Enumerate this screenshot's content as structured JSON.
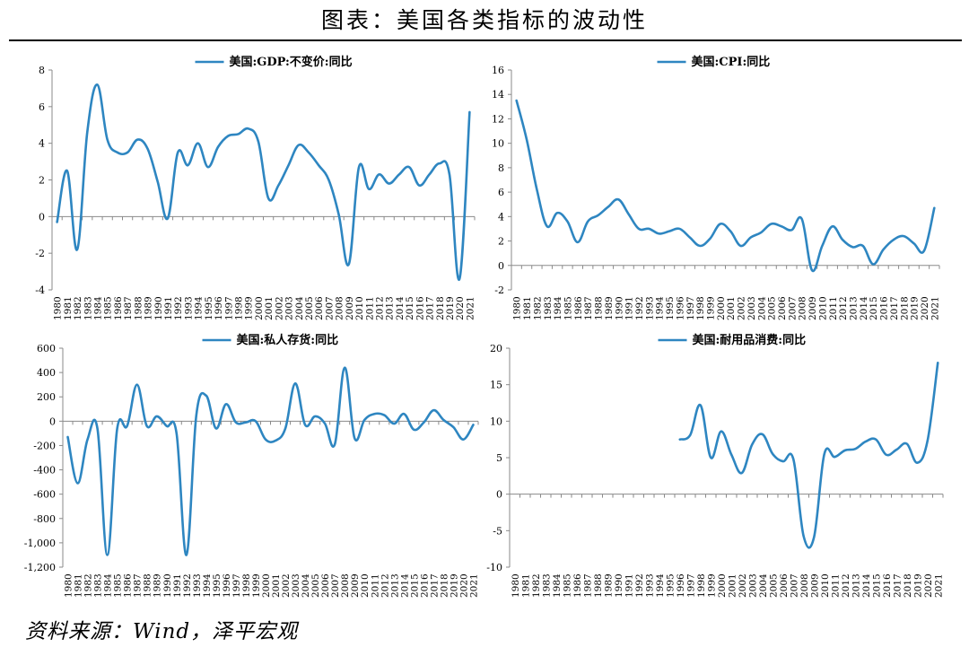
{
  "figure": {
    "title": "图表：美国各类指标的波动性",
    "source": "资料来源：Wind，泽平宏观"
  },
  "colors": {
    "line": "#2E86C1",
    "axis": "#8a8a8a",
    "text": "#000000"
  },
  "chart_data": [
    {
      "type": "line",
      "title": "",
      "legend": "美国:GDP:不变价:同比",
      "legend_position": "top-center",
      "ylim": [
        -4,
        8
      ],
      "yticks": [
        -4,
        -2,
        0,
        2,
        4,
        6,
        8
      ],
      "ytick_labels": [
        "-4",
        "-2",
        "0",
        "2",
        "4",
        "6",
        "8"
      ],
      "xlim": [
        1980,
        2021
      ],
      "xticks": [
        1980,
        1981,
        1982,
        1983,
        1984,
        1985,
        1986,
        1987,
        1988,
        1989,
        1990,
        1991,
        1992,
        1993,
        1994,
        1995,
        1996,
        1997,
        1998,
        1999,
        2000,
        2001,
        2002,
        2003,
        2004,
        2005,
        2006,
        2007,
        2008,
        2009,
        2010,
        2011,
        2012,
        2013,
        2014,
        2015,
        2016,
        2017,
        2018,
        2019,
        2020,
        2021
      ],
      "grid": false,
      "series": [
        {
          "x": [
            1980,
            1981,
            1982,
            1983,
            1984,
            1985,
            1986,
            1987,
            1988,
            1989,
            1990,
            1991,
            1992,
            1993,
            1994,
            1995,
            1996,
            1997,
            1998,
            1999,
            2000,
            2001,
            2002,
            2003,
            2004,
            2005,
            2006,
            2007,
            2008,
            2009,
            2010,
            2011,
            2012,
            2013,
            2014,
            2015,
            2016,
            2017,
            2018,
            2019,
            2020,
            2021
          ],
          "values": [
            -0.3,
            2.5,
            -1.8,
            4.6,
            7.2,
            4.2,
            3.5,
            3.5,
            4.2,
            3.7,
            1.9,
            -0.1,
            3.5,
            2.8,
            4.0,
            2.7,
            3.8,
            4.4,
            4.5,
            4.8,
            4.1,
            1.0,
            1.7,
            2.8,
            3.9,
            3.5,
            2.8,
            2.0,
            0.1,
            -2.6,
            2.7,
            1.5,
            2.3,
            1.8,
            2.3,
            2.7,
            1.7,
            2.3,
            2.9,
            2.3,
            -3.4,
            5.7
          ]
        }
      ]
    },
    {
      "type": "line",
      "title": "",
      "legend": "美国:CPI:同比",
      "legend_position": "top-center",
      "ylim": [
        -2,
        16
      ],
      "yticks": [
        -2,
        0,
        2,
        4,
        6,
        8,
        10,
        12,
        14,
        16
      ],
      "ytick_labels": [
        "-2",
        "0",
        "2",
        "4",
        "6",
        "8",
        "10",
        "12",
        "14",
        "16"
      ],
      "xlim": [
        1980,
        2021
      ],
      "xticks": [
        1980,
        1981,
        1982,
        1983,
        1984,
        1985,
        1986,
        1987,
        1988,
        1989,
        1990,
        1991,
        1992,
        1993,
        1994,
        1995,
        1996,
        1997,
        1998,
        1999,
        2000,
        2001,
        2002,
        2003,
        2004,
        2005,
        2006,
        2007,
        2008,
        2009,
        2010,
        2011,
        2012,
        2013,
        2014,
        2015,
        2016,
        2017,
        2018,
        2019,
        2020,
        2021
      ],
      "grid": false,
      "series": [
        {
          "x": [
            1980,
            1981,
            1982,
            1983,
            1984,
            1985,
            1986,
            1987,
            1988,
            1989,
            1990,
            1991,
            1992,
            1993,
            1994,
            1995,
            1996,
            1997,
            1998,
            1999,
            2000,
            2001,
            2002,
            2003,
            2004,
            2005,
            2006,
            2007,
            2008,
            2009,
            2010,
            2011,
            2012,
            2013,
            2014,
            2015,
            2016,
            2017,
            2018,
            2019,
            2020,
            2021
          ],
          "values": [
            13.5,
            10.3,
            6.2,
            3.2,
            4.3,
            3.6,
            1.9,
            3.6,
            4.1,
            4.8,
            5.4,
            4.2,
            3.0,
            3.0,
            2.6,
            2.8,
            3.0,
            2.3,
            1.6,
            2.2,
            3.4,
            2.8,
            1.6,
            2.3,
            2.7,
            3.4,
            3.2,
            2.9,
            3.8,
            -0.4,
            1.6,
            3.2,
            2.1,
            1.5,
            1.6,
            0.1,
            1.3,
            2.1,
            2.4,
            1.8,
            1.2,
            4.7
          ]
        }
      ]
    },
    {
      "type": "line",
      "title": "",
      "legend": "美国:私人存货:同比",
      "legend_position": "top-center",
      "ylim": [
        -1200,
        600
      ],
      "yticks": [
        -1200,
        -1000,
        -800,
        -600,
        -400,
        -200,
        0,
        200,
        400,
        600
      ],
      "ytick_labels": [
        "-1,200",
        "-1,000",
        "-800",
        "-600",
        "-400",
        "-200",
        "0",
        "200",
        "400",
        "600"
      ],
      "xlim": [
        1980,
        2021
      ],
      "xticks": [
        1980,
        1981,
        1982,
        1983,
        1984,
        1985,
        1986,
        1987,
        1988,
        1989,
        1990,
        1991,
        1992,
        1993,
        1994,
        1995,
        1996,
        1997,
        1998,
        1999,
        2000,
        2001,
        2002,
        2003,
        2004,
        2005,
        2006,
        2007,
        2008,
        2009,
        2010,
        2011,
        2012,
        2013,
        2014,
        2015,
        2016,
        2017,
        2018,
        2019,
        2020,
        2021
      ],
      "grid": false,
      "series": [
        {
          "x": [
            1980,
            1981,
            1982,
            1983,
            1984,
            1985,
            1986,
            1987,
            1988,
            1989,
            1990,
            1991,
            1992,
            1993,
            1994,
            1995,
            1996,
            1997,
            1998,
            1999,
            2000,
            2001,
            2002,
            2003,
            2004,
            2005,
            2006,
            2007,
            2008,
            2009,
            2010,
            2011,
            2012,
            2013,
            2014,
            2015,
            2016,
            2017,
            2018,
            2019,
            2020,
            2021
          ],
          "values": [
            -130,
            -510,
            -150,
            -60,
            -1100,
            -60,
            -40,
            300,
            -40,
            40,
            -40,
            -100,
            -1100,
            50,
            210,
            -60,
            140,
            -10,
            -10,
            0,
            -150,
            -160,
            -60,
            310,
            -30,
            40,
            -20,
            -190,
            440,
            -140,
            10,
            60,
            50,
            -20,
            60,
            -70,
            -10,
            90,
            10,
            -50,
            -150,
            -30
          ]
        }
      ]
    },
    {
      "type": "line",
      "title": "",
      "legend": "美国:耐用品消费:同比",
      "legend_position": "top-center",
      "ylim": [
        -10,
        20
      ],
      "yticks": [
        -10,
        -5,
        0,
        5,
        10,
        15,
        20
      ],
      "ytick_labels": [
        "-10",
        "-5",
        "0",
        "5",
        "10",
        "15",
        "20"
      ],
      "xlim": [
        1980,
        2021
      ],
      "xticks": [
        1980,
        1981,
        1982,
        1983,
        1984,
        1985,
        1986,
        1987,
        1988,
        1989,
        1990,
        1991,
        1992,
        1993,
        1994,
        1995,
        1996,
        1997,
        1998,
        1999,
        2000,
        2001,
        2002,
        2003,
        2004,
        2005,
        2006,
        2007,
        2008,
        2009,
        2010,
        2011,
        2012,
        2013,
        2014,
        2015,
        2016,
        2017,
        2018,
        2019,
        2020,
        2021
      ],
      "grid": false,
      "series": [
        {
          "x": [
            1996,
            1997,
            1998,
            1999,
            2000,
            2001,
            2002,
            2003,
            2004,
            2005,
            2006,
            2007,
            2008,
            2009,
            2010,
            2011,
            2012,
            2013,
            2014,
            2015,
            2016,
            2017,
            2018,
            2019,
            2020,
            2021
          ],
          "values": [
            7.5,
            8.1,
            12.2,
            5.0,
            8.6,
            5.4,
            2.9,
            6.8,
            8.2,
            5.5,
            4.5,
            4.8,
            -5.8,
            -5.9,
            5.5,
            5.1,
            6.0,
            6.2,
            7.2,
            7.5,
            5.4,
            6.1,
            6.9,
            4.3,
            7.3,
            18.0
          ]
        }
      ]
    }
  ]
}
